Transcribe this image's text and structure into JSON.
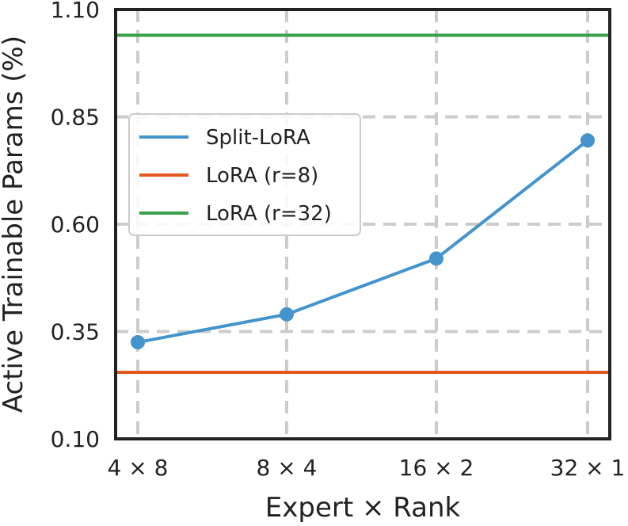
{
  "chart_data": {
    "type": "line",
    "title": "",
    "xlabel": "Expert × Rank",
    "ylabel": "Active Trainable Params (%)",
    "categories": [
      "4 × 8",
      "8 × 4",
      "16 × 2",
      "32 × 1"
    ],
    "ylim": [
      0.1,
      1.1
    ],
    "yticks": [
      "0.10",
      "0.35",
      "0.60",
      "0.85",
      "1.10"
    ],
    "grid": true,
    "legend_position": "upper-left",
    "series": [
      {
        "name": "Split-LoRA",
        "kind": "line-markers",
        "color": "#4394cc",
        "values": [
          0.325,
          0.39,
          0.52,
          0.795
        ]
      },
      {
        "name": "LoRA (r=8)",
        "kind": "horizontal",
        "color": "#e4581c",
        "value": 0.255
      },
      {
        "name": "LoRA (r=32)",
        "kind": "horizontal",
        "color": "#3aa04a",
        "value": 1.04
      }
    ]
  }
}
